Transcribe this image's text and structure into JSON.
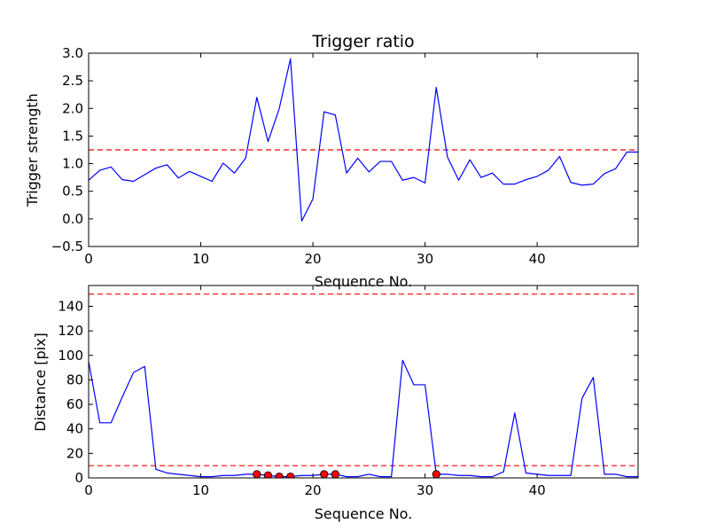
{
  "chart_data": [
    {
      "type": "line",
      "title": "Trigger ratio",
      "xlabel": "Sequence No.",
      "ylabel": "Trigger strength",
      "xlim": [
        0,
        49
      ],
      "ylim": [
        -0.5,
        3.0
      ],
      "xticks": [
        0,
        10,
        20,
        30,
        40
      ],
      "xtick_labels": [
        "0",
        "10",
        "20",
        "30",
        "40"
      ],
      "yticks": [
        -0.5,
        0.0,
        0.5,
        1.0,
        1.5,
        2.0,
        2.5,
        3.0
      ],
      "ytick_labels": [
        "−0.5",
        "0.0",
        "0.5",
        "1.0",
        "1.5",
        "2.0",
        "2.5",
        "3.0"
      ],
      "grid": false,
      "series": [
        {
          "color": "#0000ff",
          "x": [
            0,
            1,
            2,
            3,
            4,
            5,
            6,
            7,
            8,
            9,
            10,
            11,
            12,
            13,
            14,
            15,
            16,
            17,
            18,
            19,
            20,
            21,
            22,
            23,
            24,
            25,
            26,
            27,
            28,
            29,
            30,
            31,
            32,
            33,
            34,
            35,
            36,
            37,
            38,
            39,
            40,
            41,
            42,
            43,
            44,
            45,
            46,
            47,
            48,
            49
          ],
          "values": [
            0.7,
            0.88,
            0.94,
            0.71,
            0.68,
            0.8,
            0.92,
            0.98,
            0.74,
            0.86,
            0.77,
            0.68,
            1.01,
            0.83,
            1.1,
            2.2,
            1.4,
            2.0,
            2.9,
            -0.04,
            0.36,
            1.94,
            1.88,
            0.83,
            1.1,
            0.85,
            1.04,
            1.04,
            0.7,
            0.75,
            0.65,
            2.38,
            1.12,
            0.7,
            1.07,
            0.75,
            0.83,
            0.63,
            0.63,
            0.71,
            0.77,
            0.88,
            1.13,
            0.66,
            0.61,
            0.63,
            0.82,
            0.91,
            1.21,
            1.21
          ]
        }
      ],
      "reference_lines": [
        {
          "y": 1.25,
          "color": "#ff0000",
          "style": "dashed"
        }
      ]
    },
    {
      "type": "line",
      "title": "",
      "xlabel": "Sequence No.",
      "ylabel": "Distance [pix]",
      "xlim": [
        0,
        49
      ],
      "ylim": [
        0,
        157
      ],
      "xticks": [
        0,
        10,
        20,
        30,
        40
      ],
      "xtick_labels": [
        "0",
        "10",
        "20",
        "30",
        "40"
      ],
      "yticks": [
        0,
        20,
        40,
        60,
        80,
        100,
        120,
        140
      ],
      "ytick_labels": [
        "0",
        "20",
        "40",
        "60",
        "80",
        "100",
        "120",
        "140"
      ],
      "grid": false,
      "series": [
        {
          "color": "#0000ff",
          "x": [
            0,
            1,
            2,
            3,
            4,
            5,
            6,
            7,
            8,
            9,
            10,
            11,
            12,
            13,
            14,
            15,
            16,
            17,
            18,
            19,
            20,
            21,
            22,
            23,
            24,
            25,
            26,
            27,
            28,
            29,
            30,
            31,
            32,
            33,
            34,
            35,
            36,
            37,
            38,
            39,
            40,
            41,
            42,
            43,
            44,
            45,
            46,
            47,
            48,
            49
          ],
          "values": [
            95,
            45,
            45,
            66,
            86,
            91,
            7,
            4,
            3,
            2,
            1,
            1,
            2,
            2,
            3,
            3,
            2,
            1,
            1,
            2,
            2,
            3,
            3,
            1,
            1,
            3,
            1,
            1,
            96,
            76,
            76,
            3,
            3,
            2,
            2,
            1,
            1,
            5,
            53,
            4,
            3,
            2,
            2,
            2,
            65,
            82,
            3,
            3,
            1,
            1
          ]
        },
        {
          "type": "scatter",
          "color": "#ff0000",
          "marker": "circle",
          "x": [
            15,
            16,
            17,
            18,
            21,
            22,
            31
          ],
          "values": [
            3,
            2,
            1,
            1,
            3,
            3,
            3
          ]
        }
      ],
      "reference_lines": [
        {
          "y": 150,
          "color": "#ff0000",
          "style": "dashed"
        },
        {
          "y": 10,
          "color": "#ff0000",
          "style": "dashed"
        }
      ]
    }
  ]
}
